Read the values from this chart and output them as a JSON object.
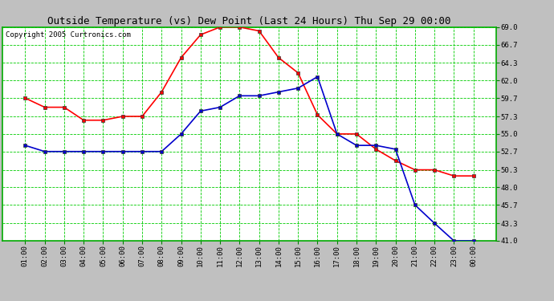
{
  "title": "Outside Temperature (vs) Dew Point (Last 24 Hours) Thu Sep 29 00:00",
  "copyright": "Copyright 2005 Curtronics.com",
  "x_labels": [
    "01:00",
    "02:00",
    "03:00",
    "04:00",
    "05:00",
    "06:00",
    "07:00",
    "08:00",
    "09:00",
    "10:00",
    "11:00",
    "12:00",
    "13:00",
    "14:00",
    "15:00",
    "16:00",
    "17:00",
    "18:00",
    "19:00",
    "20:00",
    "21:00",
    "22:00",
    "23:00",
    "00:00"
  ],
  "temp_red": [
    59.7,
    58.5,
    58.5,
    56.8,
    56.8,
    57.3,
    57.3,
    60.5,
    65.0,
    68.0,
    69.0,
    69.0,
    68.5,
    65.0,
    63.0,
    57.5,
    55.0,
    55.0,
    53.0,
    51.5,
    50.3,
    50.3,
    49.5,
    49.5
  ],
  "temp_blue": [
    53.5,
    52.7,
    52.7,
    52.7,
    52.7,
    52.7,
    52.7,
    52.7,
    55.0,
    58.0,
    58.5,
    60.0,
    60.0,
    60.5,
    61.0,
    62.5,
    55.0,
    53.5,
    53.5,
    53.0,
    45.7,
    43.3,
    41.0,
    41.0
  ],
  "ylim_min": 41.0,
  "ylim_max": 69.0,
  "yticks": [
    41.0,
    43.3,
    45.7,
    48.0,
    50.3,
    52.7,
    55.0,
    57.3,
    59.7,
    62.0,
    64.3,
    66.7,
    69.0
  ],
  "red_color": "#ff0000",
  "blue_color": "#0000cc",
  "bg_color": "#c0c0c0",
  "plot_bg_color": "#ffffff",
  "grid_color": "#00cc00",
  "title_color": "#000000",
  "marker": "s",
  "marker_size": 3,
  "line_width": 1.2,
  "title_fontsize": 9,
  "copyright_fontsize": 6.5,
  "tick_fontsize": 6.5
}
